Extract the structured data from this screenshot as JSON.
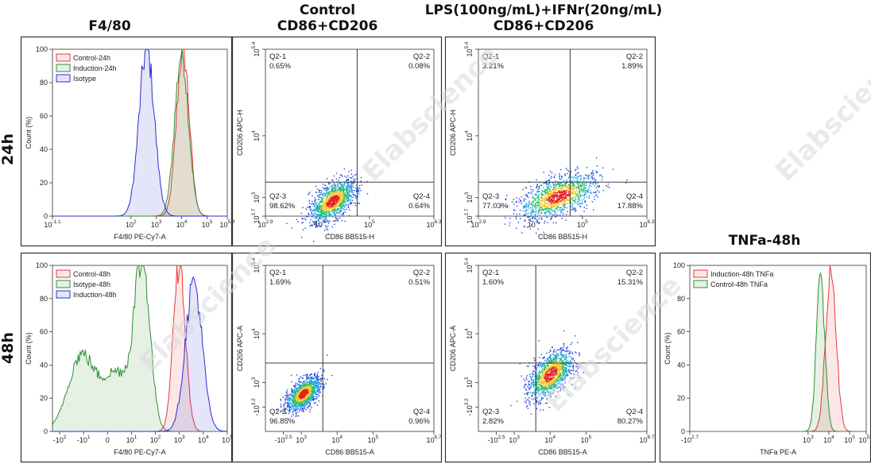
{
  "headers": {
    "f480": "F4/80",
    "control": [
      "Control",
      "CD86+CD206"
    ],
    "lps": [
      "LPS(100ng/mL)+IFNr(20ng/mL)",
      "CD86+CD206"
    ],
    "tnfa": "TNFa-48h"
  },
  "row_labels": [
    "24h",
    "48h"
  ],
  "watermark": "Elabscience",
  "colors": {
    "red": "#e8383d",
    "green": "#2f8f2f",
    "blue": "#2b2bd8"
  },
  "chart_data": [
    {
      "id": "hist-24h",
      "type": "area",
      "xlabel": "F4/80 PE-Cy7-A",
      "ylabel": "Count (%)",
      "x_scale": "log",
      "xlim": [
        -1.1,
        5.8
      ],
      "ylim": [
        0,
        100
      ],
      "x_ticks": [
        {
          "base": "10",
          "exp": "-1.1",
          "v": -1.1
        },
        {
          "base": "10",
          "exp": "2",
          "v": 2
        },
        {
          "base": "10",
          "exp": "3",
          "v": 3
        },
        {
          "base": "10",
          "exp": "4",
          "v": 4
        },
        {
          "base": "10",
          "exp": "5",
          "v": 5
        },
        {
          "base": "10",
          "exp": "5.8",
          "v": 5.8
        }
      ],
      "y_ticks": [
        0,
        20,
        40,
        60,
        80,
        100
      ],
      "legend": [
        "Control-24h",
        "Induction-24h",
        "Isotype"
      ],
      "series": [
        {
          "name": "Control-24h",
          "color": "red",
          "peak_log10": 4.05,
          "width": 0.25,
          "peak": 100
        },
        {
          "name": "Induction-24h",
          "color": "green",
          "peak_log10": 4.0,
          "width": 0.27,
          "peak": 98
        },
        {
          "name": "Isotype",
          "color": "blue",
          "peak_log10": 2.62,
          "width": 0.3,
          "peak": 100
        }
      ]
    },
    {
      "id": "dot-ctrl-24h",
      "type": "scatter",
      "xlabel": "CD86 BB515-H",
      "ylabel": "CD206 APC-H",
      "x_ticks": [
        {
          "base": "10",
          "exp": "2.9",
          "v": 2.9
        },
        {
          "base": "10",
          "exp": "4",
          "v": 4
        },
        {
          "base": "10",
          "exp": "5",
          "v": 5
        },
        {
          "base": "10",
          "exp": "6.3",
          "v": 6.3
        }
      ],
      "y_ticks": [
        {
          "base": "10",
          "exp": "2.7",
          "v": 2.7
        },
        {
          "base": "10",
          "exp": "3",
          "v": 3
        },
        {
          "base": "10",
          "exp": "4",
          "v": 4
        },
        {
          "base": "10",
          "exp": "5.4",
          "v": 5.4
        }
      ],
      "xlim": [
        2.9,
        6.3
      ],
      "ylim": [
        2.7,
        5.4
      ],
      "gate": {
        "x": 4.75,
        "y": 3.25
      },
      "quadrants": [
        {
          "name": "Q2-1",
          "value": "0.65%"
        },
        {
          "name": "Q2-2",
          "value": "0.08%"
        },
        {
          "name": "Q2-3",
          "value": "98.62%"
        },
        {
          "name": "Q2-4",
          "value": "0.64%"
        }
      ]
    },
    {
      "id": "dot-lps-24h",
      "type": "scatter",
      "xlabel": "CD86 BB515-H",
      "ylabel": "CD206 APC-H",
      "x_ticks": [
        {
          "base": "10",
          "exp": "2.9",
          "v": 2.9
        },
        {
          "base": "10",
          "exp": "4",
          "v": 4
        },
        {
          "base": "10",
          "exp": "5",
          "v": 5
        },
        {
          "base": "10",
          "exp": "6.3",
          "v": 6.3
        }
      ],
      "y_ticks": [
        {
          "base": "10",
          "exp": "2.7",
          "v": 2.7
        },
        {
          "base": "10",
          "exp": "3",
          "v": 3
        },
        {
          "base": "10",
          "exp": "4",
          "v": 4
        },
        {
          "base": "10",
          "exp": "5.4",
          "v": 5.4
        }
      ],
      "xlim": [
        2.9,
        6.3
      ],
      "ylim": [
        2.7,
        5.4
      ],
      "gate": {
        "x": 4.75,
        "y": 3.25
      },
      "quadrants": [
        {
          "name": "Q2-1",
          "value": "3.21%"
        },
        {
          "name": "Q2-2",
          "value": "1.89%"
        },
        {
          "name": "Q2-3",
          "value": "77.03%"
        },
        {
          "name": "Q2-4",
          "value": "17.88%"
        }
      ]
    },
    {
      "id": "hist-48h",
      "type": "area",
      "xlabel": "F4/80 PE-Cy7-A",
      "ylabel": "Count (%)",
      "x_scale": "biexponential",
      "xlim": [
        -2.3,
        5.0
      ],
      "ylim": [
        0,
        100
      ],
      "x_ticks": [
        {
          "base": "-10",
          "exp": "2",
          "v": -2
        },
        {
          "base": "-10",
          "exp": "1",
          "v": -1
        },
        {
          "base": "0",
          "exp": "",
          "v": 0
        },
        {
          "base": "10",
          "exp": "1",
          "v": 1
        },
        {
          "base": "10",
          "exp": "2",
          "v": 2
        },
        {
          "base": "10",
          "exp": "3",
          "v": 3
        },
        {
          "base": "10",
          "exp": "4",
          "v": 4
        },
        {
          "base": "10",
          "exp": "5",
          "v": 5
        }
      ],
      "y_ticks": [
        0,
        20,
        40,
        60,
        80,
        100
      ],
      "legend": [
        "Control-48h",
        "Isotype-48h",
        "Induction-48h"
      ],
      "series": [
        {
          "name": "Control-48h",
          "color": "red",
          "peak_log10": 3.0,
          "width": 0.25,
          "peak": 100
        },
        {
          "name": "Isotype-48h",
          "color": "green",
          "peak_log10": 1.4,
          "width": 0.55,
          "peak": 100
        },
        {
          "name": "Induction-48h",
          "color": "blue",
          "peak_log10": 3.6,
          "width": 0.35,
          "peak": 90
        }
      ]
    },
    {
      "id": "dot-ctrl-48h",
      "type": "scatter",
      "xlabel": "CD86 BB515-A",
      "ylabel": "CD206 APC-A",
      "x_ticks": [
        {
          "base": "-10",
          "exp": "2.5",
          "v": 2.5
        },
        {
          "base": "10",
          "exp": "3",
          "v": 3
        },
        {
          "base": "10",
          "exp": "4",
          "v": 4
        },
        {
          "base": "10",
          "exp": "5",
          "v": 5
        },
        {
          "base": "10",
          "exp": "6.7",
          "v": 6.7
        }
      ],
      "y_ticks": [
        {
          "base": "-10",
          "exp": "3.2",
          "v": 2.5
        },
        {
          "base": "10",
          "exp": "3",
          "v": 3
        },
        {
          "base": "10",
          "exp": "4",
          "v": 4
        },
        {
          "base": "10",
          "exp": "5.4",
          "v": 5.4
        }
      ],
      "xlim": [
        2.0,
        6.7
      ],
      "ylim": [
        2.0,
        5.4
      ],
      "gate": {
        "x": 3.6,
        "y": 3.4
      },
      "quadrants": [
        {
          "name": "Q2-1",
          "value": "1.69%"
        },
        {
          "name": "Q2-2",
          "value": "0.51%"
        },
        {
          "name": "Q2-3",
          "value": "96.85%"
        },
        {
          "name": "Q2-4",
          "value": "0.96%"
        }
      ]
    },
    {
      "id": "dot-lps-48h",
      "type": "scatter",
      "xlabel": "CD86 BB515-A",
      "ylabel": "CD206 APC-A",
      "x_ticks": [
        {
          "base": "-10",
          "exp": "2.5",
          "v": 2.5
        },
        {
          "base": "10",
          "exp": "3",
          "v": 3
        },
        {
          "base": "10",
          "exp": "4",
          "v": 4
        },
        {
          "base": "10",
          "exp": "5",
          "v": 5
        },
        {
          "base": "10",
          "exp": "6.7",
          "v": 6.7
        }
      ],
      "y_ticks": [
        {
          "base": "-10",
          "exp": "3.2",
          "v": 2.5
        },
        {
          "base": "10",
          "exp": "3",
          "v": 3
        },
        {
          "base": "10",
          "exp": "4",
          "v": 4
        },
        {
          "base": "10",
          "exp": "5.4",
          "v": 5.4
        }
      ],
      "xlim": [
        2.0,
        6.7
      ],
      "ylim": [
        2.0,
        5.4
      ],
      "gate": {
        "x": 3.6,
        "y": 3.4
      },
      "quadrants": [
        {
          "name": "Q2-1",
          "value": "1.60%"
        },
        {
          "name": "Q2-2",
          "value": "15.31%"
        },
        {
          "name": "Q2-3",
          "value": "2.82%"
        },
        {
          "name": "Q2-4",
          "value": "80.27%"
        }
      ]
    },
    {
      "id": "hist-tnfa",
      "type": "area",
      "xlabel": "TNFa PE-A",
      "ylabel": "Count (%)",
      "x_scale": "log",
      "xlim": [
        -2.7,
        5.8
      ],
      "ylim": [
        0,
        100
      ],
      "x_ticks": [
        {
          "base": "-10",
          "exp": "2.7",
          "v": -2.7
        },
        {
          "base": "10",
          "exp": "3",
          "v": 3
        },
        {
          "base": "10",
          "exp": "4",
          "v": 4
        },
        {
          "base": "10",
          "exp": "5",
          "v": 5
        },
        {
          "base": "10",
          "exp": "5.8",
          "v": 5.8
        }
      ],
      "y_ticks": [
        0,
        20,
        40,
        60,
        80,
        100
      ],
      "legend": [
        "Induction-48h TNFa",
        "Control-48h TNFa"
      ],
      "series": [
        {
          "name": "Induction-48h TNFa",
          "color": "red",
          "peak_log10": 4.1,
          "width": 0.25,
          "peak": 100
        },
        {
          "name": "Control-48h TNFa",
          "color": "green",
          "peak_log10": 3.6,
          "width": 0.2,
          "peak": 95
        }
      ]
    }
  ]
}
